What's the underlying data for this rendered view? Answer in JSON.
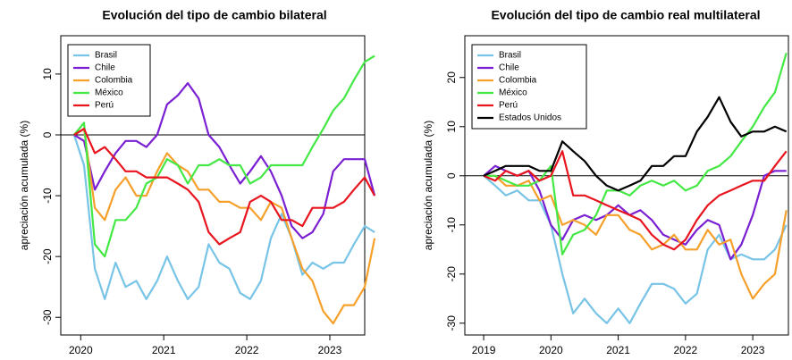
{
  "chart_data": [
    {
      "type": "line",
      "title": "Evolución del tipo de cambio bilateral",
      "ylabel": "apreciación acumulada (%)",
      "x": [
        2019.92,
        2020.04,
        2020.17,
        2020.29,
        2020.42,
        2020.54,
        2020.67,
        2020.79,
        2020.92,
        2021.04,
        2021.17,
        2021.29,
        2021.42,
        2021.54,
        2021.67,
        2021.79,
        2021.92,
        2022.04,
        2022.17,
        2022.29,
        2022.42,
        2022.54,
        2022.67,
        2022.79,
        2022.92,
        2023.04,
        2023.17,
        2023.29,
        2023.42,
        2023.54
      ],
      "xlim": [
        2019.76,
        2023.42
      ],
      "xticks": [
        2020,
        2021,
        2022,
        2023
      ],
      "ylim": [
        -32.9,
        16.3
      ],
      "yticks": [
        -30,
        -20,
        -10,
        0,
        10
      ],
      "reference_line": 0,
      "legend": "top-left",
      "series": [
        {
          "name": "Brasil",
          "color": "#78c4e6",
          "values": [
            0,
            -5,
            -22,
            -27,
            -21,
            -25,
            -24,
            -27,
            -24,
            -20,
            -24,
            -27,
            -25,
            -18,
            -21,
            -22,
            -26,
            -27,
            -24,
            -17,
            -13,
            -17,
            -23,
            -21,
            -22,
            -21,
            -21,
            -18,
            -15,
            -16
          ]
        },
        {
          "name": "Chile",
          "color": "#7a1fd2",
          "values": [
            0,
            -1,
            -9,
            -6,
            -3,
            -1,
            -1,
            -2,
            0,
            5,
            6.5,
            8.5,
            6,
            0,
            -2,
            -5,
            -8,
            -6,
            -3.5,
            -6,
            -10,
            -15,
            -17,
            -16,
            -13,
            -6,
            -4,
            -4,
            -4,
            -10
          ]
        },
        {
          "name": "Colombia",
          "color": "#f5a02a",
          "values": [
            0,
            1,
            -12,
            -14,
            -9,
            -7,
            -10,
            -10,
            -6,
            -3,
            -5,
            -6,
            -9,
            -9,
            -11,
            -11,
            -12,
            -12,
            -14,
            -11,
            -12,
            -17,
            -22,
            -24,
            -29,
            -31,
            -28,
            -28,
            -25,
            -17
          ]
        },
        {
          "name": "México",
          "color": "#44e844",
          "values": [
            0,
            2,
            -18,
            -20,
            -14,
            -14,
            -12,
            -8,
            -7,
            -4,
            -5,
            -8,
            -5,
            -5,
            -4,
            -5,
            -5,
            -8,
            -7,
            -5,
            -5,
            -5,
            -5,
            -2,
            1,
            4,
            6,
            9,
            12,
            13
          ]
        },
        {
          "name": "Perú",
          "color": "#e8141e",
          "values": [
            0,
            1,
            -3,
            -2,
            -4,
            -6,
            -6,
            -7,
            -7,
            -7,
            -8,
            -9,
            -11,
            -16,
            -18,
            -17,
            -16,
            -11,
            -10,
            -11,
            -14,
            -14,
            -15,
            -12,
            -12,
            -12,
            -11,
            -9,
            -7,
            -10
          ]
        }
      ]
    },
    {
      "type": "line",
      "title": "Evolución del tipo de cambio real multilateral",
      "ylabel": "apreciación acumulada (%)",
      "x": [
        2019,
        2019.17,
        2019.33,
        2019.5,
        2019.67,
        2019.83,
        2020,
        2020.17,
        2020.33,
        2020.5,
        2020.67,
        2020.83,
        2021,
        2021.17,
        2021.33,
        2021.5,
        2021.67,
        2021.83,
        2022,
        2022.17,
        2022.33,
        2022.5,
        2022.67,
        2022.83,
        2023,
        2023.17,
        2023.33,
        2023.5
      ],
      "xlim": [
        2018.72,
        2023.53
      ],
      "xticks": [
        2019,
        2020,
        2021,
        2022,
        2023
      ],
      "ylim": [
        -32.4,
        28.5
      ],
      "yticks": [
        -30,
        -20,
        -10,
        0,
        10,
        20
      ],
      "reference_line": 0,
      "legend": "top-left",
      "series": [
        {
          "name": "Brasil",
          "color": "#78c4e6",
          "values": [
            0,
            -2,
            -4,
            -3,
            -5,
            -5,
            -10,
            -20,
            -28,
            -25,
            -28,
            -30,
            -27,
            -30,
            -26,
            -22,
            -22,
            -23,
            -26,
            -24,
            -15,
            -12,
            -17,
            -16,
            -17,
            -17,
            -15,
            -10
          ]
        },
        {
          "name": "Chile",
          "color": "#7a1fd2",
          "values": [
            0,
            2,
            1,
            0,
            1,
            -3,
            -10,
            -13,
            -9,
            -8,
            -9,
            -8,
            -6,
            -8,
            -7,
            -9,
            -12,
            -13,
            -14,
            -11,
            -9,
            -10,
            -17,
            -14,
            -8,
            0,
            1,
            1
          ]
        },
        {
          "name": "Colombia",
          "color": "#f5a02a",
          "values": [
            0,
            0,
            -2,
            -2,
            -1,
            -5,
            -4,
            -10,
            -9,
            -10,
            -12,
            -8,
            -8,
            -11,
            -12,
            -15,
            -14,
            -12,
            -15,
            -15,
            -11,
            -14,
            -13,
            -20,
            -25,
            -22,
            -20,
            -7
          ]
        },
        {
          "name": "México",
          "color": "#44e844",
          "values": [
            0,
            0,
            -1,
            -2,
            -2,
            -1,
            2,
            -16,
            -12,
            -11,
            -8,
            -3,
            -3,
            -4,
            -2,
            -1,
            -2,
            -1,
            -3,
            -2,
            1,
            2,
            4,
            7,
            10,
            14,
            17,
            25
          ]
        },
        {
          "name": "Perú",
          "color": "#e8141e",
          "values": [
            0,
            -1,
            1,
            0,
            1,
            -1,
            0,
            5,
            -4,
            -4,
            -5,
            -6,
            -7,
            -8,
            -9,
            -12,
            -14,
            -15,
            -13,
            -9,
            -6,
            -4,
            -3,
            -2,
            -1,
            -1,
            2,
            5
          ]
        },
        {
          "name": "Estados Unidos",
          "color": "#000000",
          "values": [
            0,
            1,
            2,
            2,
            2,
            1,
            1,
            7,
            5,
            3,
            0,
            -2,
            -3,
            -2,
            -1,
            2,
            2,
            4,
            4,
            9,
            12,
            16,
            11,
            8,
            9,
            9,
            10,
            9
          ]
        }
      ]
    }
  ]
}
